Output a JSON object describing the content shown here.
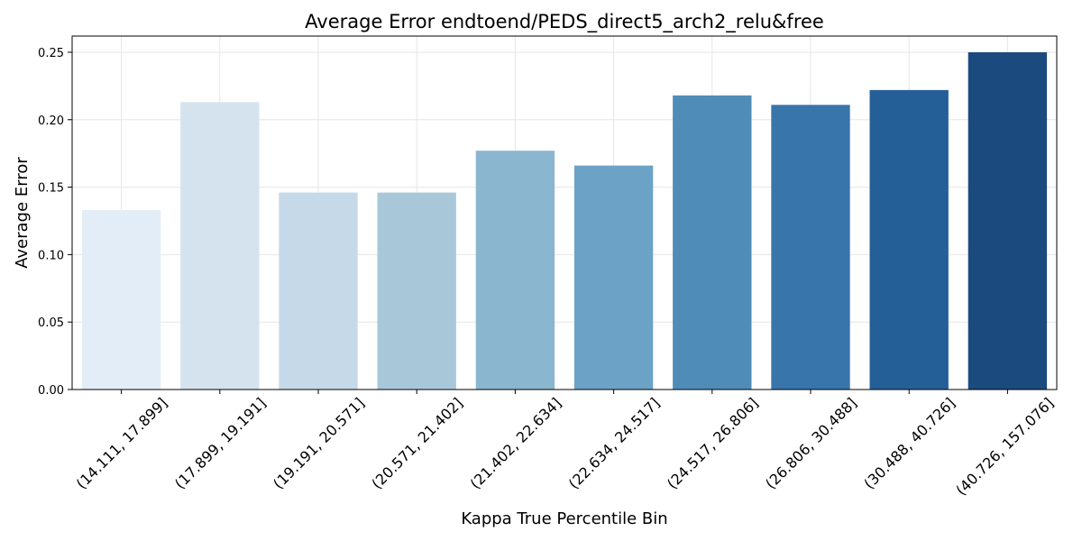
{
  "chart_data": {
    "type": "bar",
    "title": "Average Error endtoend/PEDS_direct5_arch2_relu&free",
    "xlabel": "Kappa True Percentile Bin",
    "ylabel": "Average Error",
    "categories": [
      "(14.111, 17.899]",
      "(17.899, 19.191]",
      "(19.191, 20.571]",
      "(20.571, 21.402]",
      "(21.402, 22.634]",
      "(22.634, 24.517]",
      "(24.517, 26.806]",
      "(26.806, 30.488]",
      "(30.488, 40.726]",
      "(40.726, 157.076]"
    ],
    "values": [
      0.133,
      0.213,
      0.146,
      0.146,
      0.177,
      0.166,
      0.218,
      0.211,
      0.222,
      0.25
    ],
    "colors": [
      "#e3edf7",
      "#d5e3ef",
      "#c5d9e8",
      "#a8c8da",
      "#8ab6cf",
      "#6ca2c5",
      "#4f8cb8",
      "#3875aa",
      "#255f98",
      "#1b4a7f"
    ],
    "ylim": [
      0,
      0.262
    ],
    "yticks": [
      0.0,
      0.05,
      0.1,
      0.15,
      0.2,
      0.25
    ],
    "ytick_labels": [
      "0.00",
      "0.05",
      "0.10",
      "0.15",
      "0.20",
      "0.25"
    ],
    "grid": true,
    "legend": "none"
  }
}
